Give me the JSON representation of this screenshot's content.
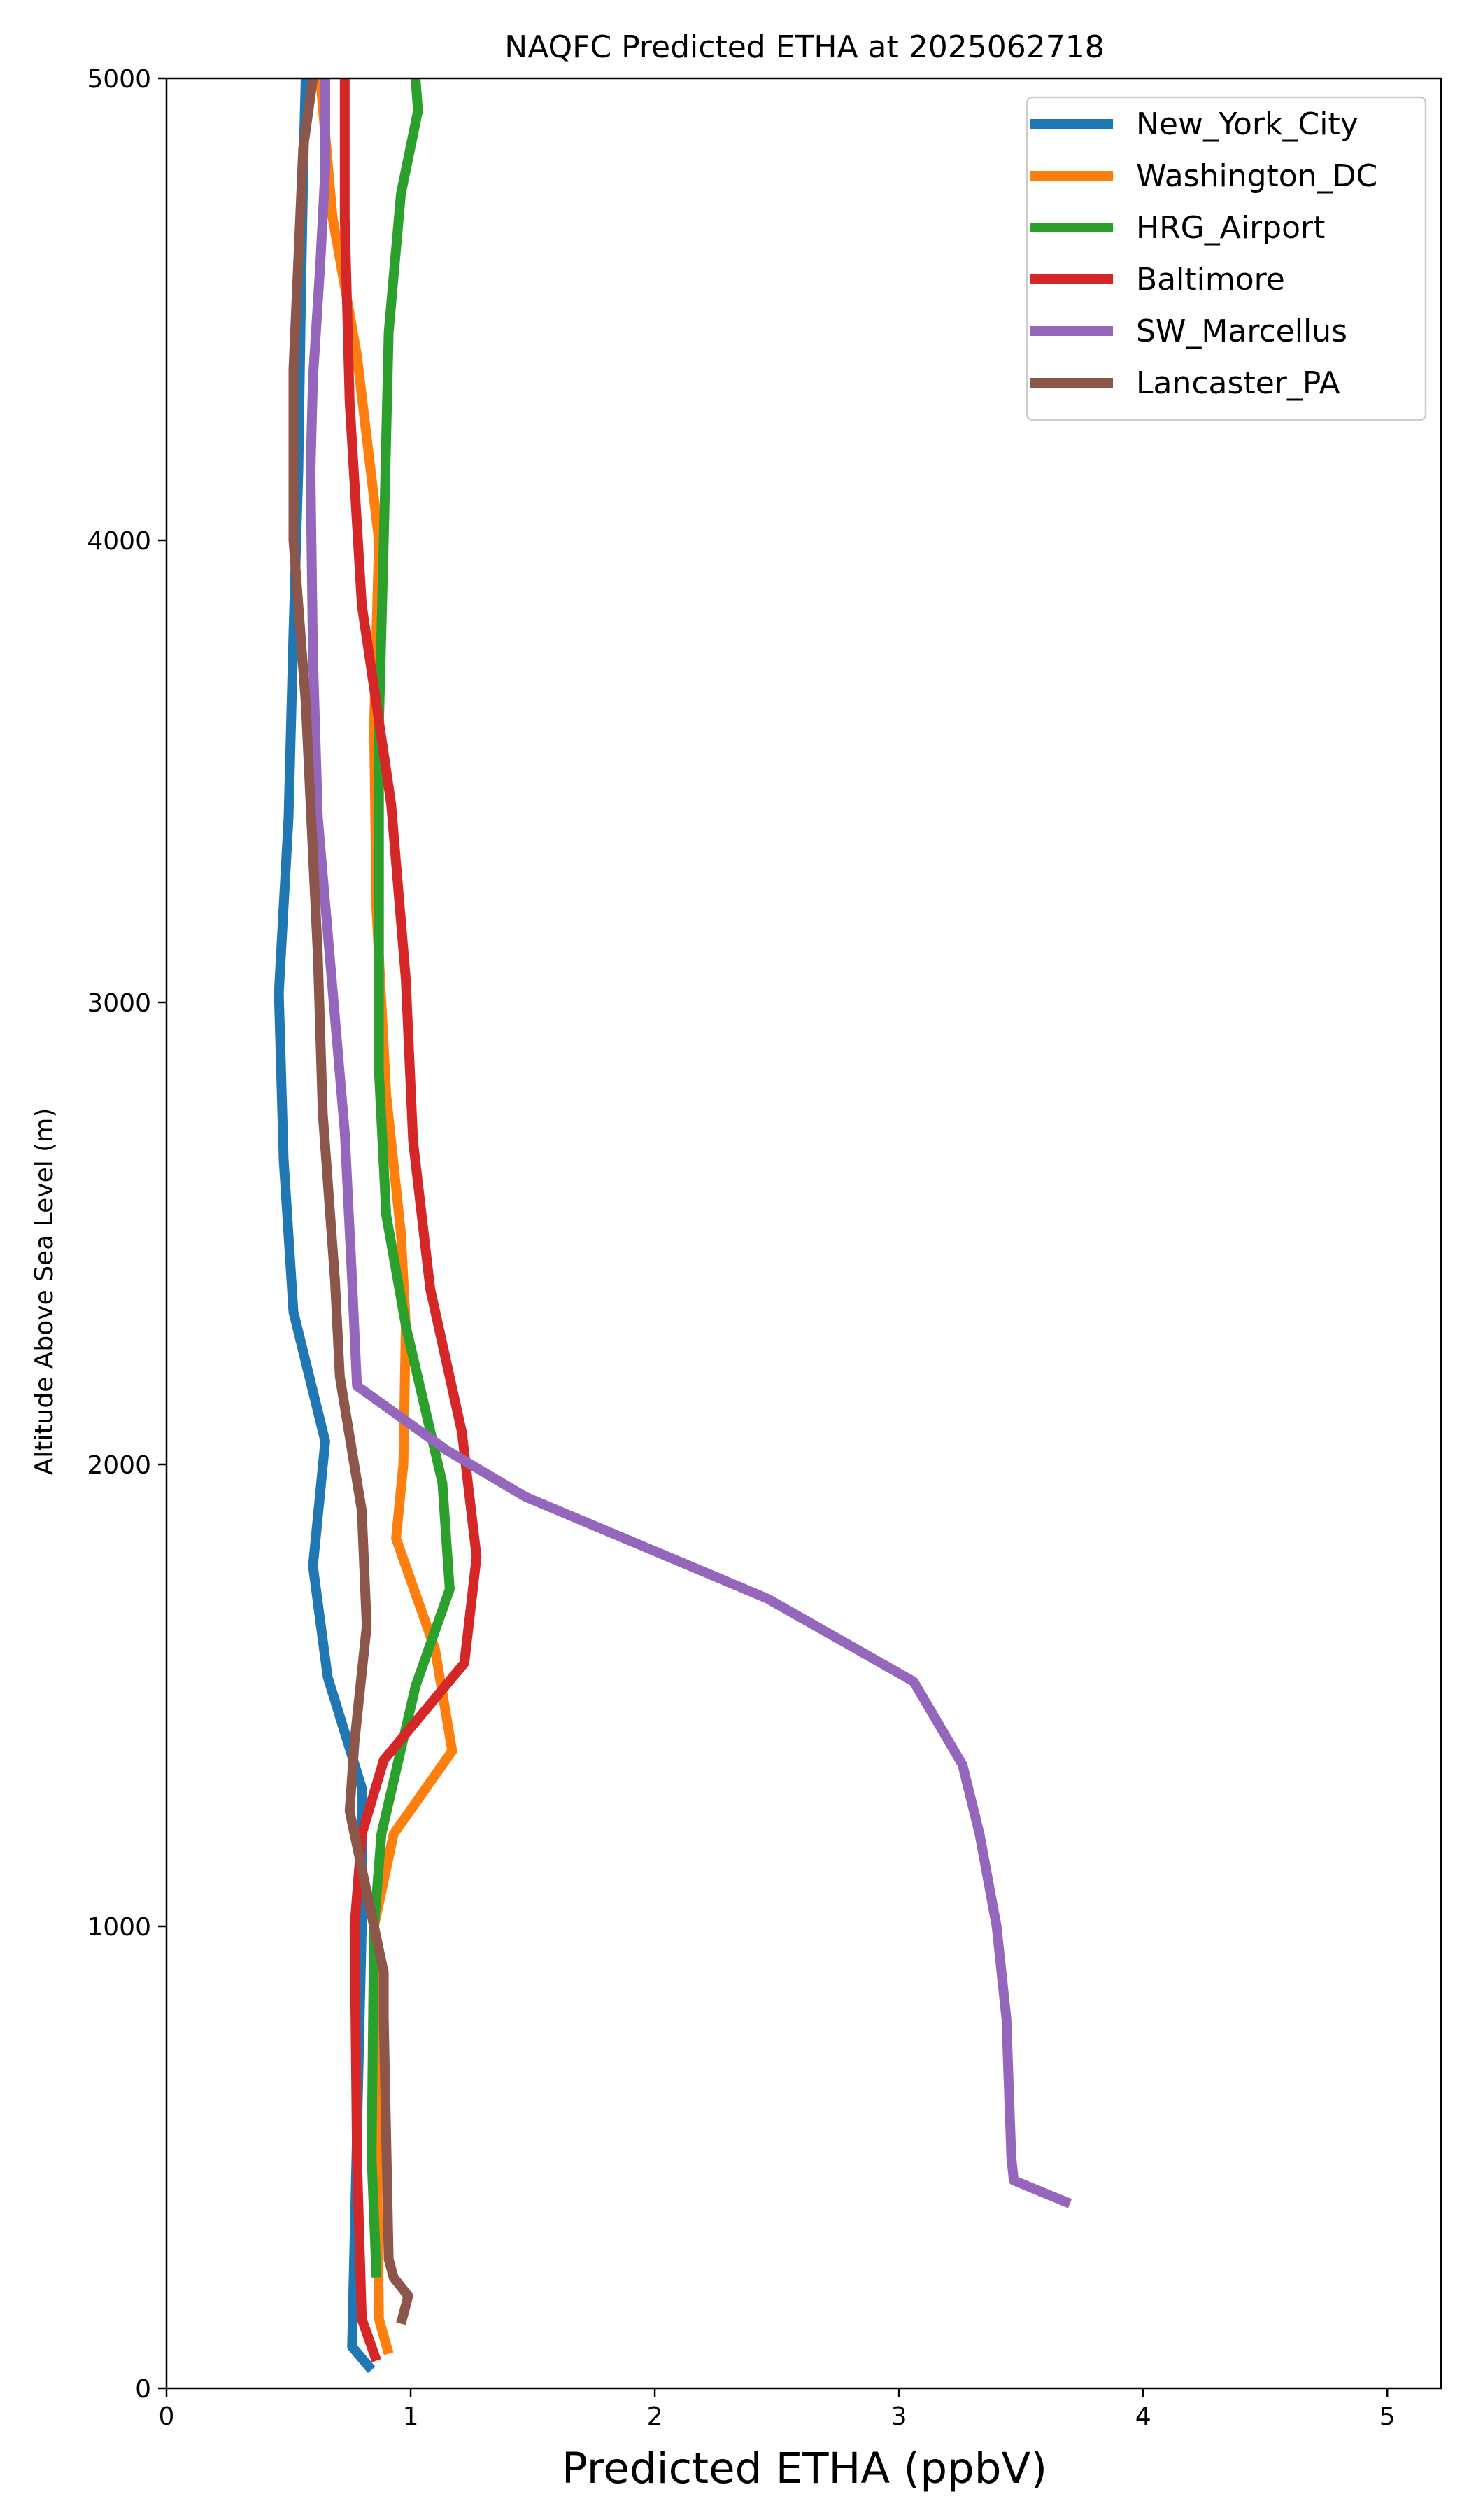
{
  "chart_data": {
    "type": "line",
    "title": "NAQFC Predicted ETHA at 2025062718",
    "xlabel": "Predicted ETHA (ppbV)",
    "ylabel": "Altitude Above Sea Level (m)",
    "xlim": [
      0,
      5.22
    ],
    "ylim": [
      0,
      5000
    ],
    "xticks": [
      0,
      1,
      2,
      3,
      4,
      5
    ],
    "yticks": [
      0,
      1000,
      2000,
      3000,
      4000,
      5000
    ],
    "x_tick_labels": [
      "0",
      "1",
      "2",
      "3",
      "4",
      "5"
    ],
    "y_tick_labels": [
      "0",
      "1000",
      "2000",
      "3000",
      "4000",
      "5000"
    ],
    "grid": false,
    "legend_position": "top-right",
    "series": [
      {
        "name": "New_York_City",
        "color": "#1f77b4",
        "points": [
          [
            0.84,
            40
          ],
          [
            0.76,
            90
          ],
          [
            0.8,
            1000
          ],
          [
            0.8,
            1300
          ],
          [
            0.66,
            1540
          ],
          [
            0.6,
            1780
          ],
          [
            0.65,
            2050
          ],
          [
            0.52,
            2330
          ],
          [
            0.48,
            2660
          ],
          [
            0.46,
            3020
          ],
          [
            0.5,
            3400
          ],
          [
            0.52,
            3800
          ],
          [
            0.54,
            4150
          ],
          [
            0.55,
            4500
          ],
          [
            0.56,
            4800
          ],
          [
            0.57,
            5000
          ]
        ]
      },
      {
        "name": "Washington_DC",
        "color": "#ff7f0e",
        "points": [
          [
            0.91,
            75
          ],
          [
            0.87,
            150
          ],
          [
            0.86,
            600
          ],
          [
            0.85,
            1000
          ],
          [
            0.93,
            1200
          ],
          [
            1.17,
            1380
          ],
          [
            1.1,
            1600
          ],
          [
            0.94,
            1840
          ],
          [
            0.97,
            2000
          ],
          [
            0.98,
            2300
          ],
          [
            0.96,
            2500
          ],
          [
            0.9,
            2800
          ],
          [
            0.86,
            3200
          ],
          [
            0.85,
            3600
          ],
          [
            0.87,
            4000
          ],
          [
            0.78,
            4400
          ],
          [
            0.68,
            4700
          ],
          [
            0.63,
            5000
          ]
        ]
      },
      {
        "name": "HRG_Airport",
        "color": "#2ca02c",
        "points": [
          [
            0.86,
            240
          ],
          [
            0.84,
            500
          ],
          [
            0.85,
            1000
          ],
          [
            0.88,
            1200
          ],
          [
            1.02,
            1520
          ],
          [
            1.16,
            1730
          ],
          [
            1.13,
            1960
          ],
          [
            0.98,
            2300
          ],
          [
            0.9,
            2540
          ],
          [
            0.87,
            2850
          ],
          [
            0.87,
            3250
          ],
          [
            0.87,
            3600
          ],
          [
            0.89,
            4000
          ],
          [
            0.91,
            4450
          ],
          [
            0.96,
            4750
          ],
          [
            1.03,
            4930
          ],
          [
            1.02,
            5000
          ]
        ]
      },
      {
        "name": "Baltimore",
        "color": "#d62728",
        "points": [
          [
            0.86,
            60
          ],
          [
            0.8,
            150
          ],
          [
            0.78,
            500
          ],
          [
            0.77,
            1000
          ],
          [
            0.8,
            1200
          ],
          [
            0.89,
            1360
          ],
          [
            1.22,
            1570
          ],
          [
            1.27,
            1800
          ],
          [
            1.21,
            2070
          ],
          [
            1.08,
            2380
          ],
          [
            1.01,
            2700
          ],
          [
            0.98,
            3050
          ],
          [
            0.92,
            3430
          ],
          [
            0.8,
            3860
          ],
          [
            0.75,
            4300
          ],
          [
            0.73,
            4700
          ],
          [
            0.73,
            5000
          ]
        ]
      },
      {
        "name": "SW_Marcellus",
        "color": "#9467bd",
        "points": [
          [
            3.7,
            400
          ],
          [
            3.47,
            450
          ],
          [
            3.46,
            500
          ],
          [
            3.44,
            800
          ],
          [
            3.4,
            1000
          ],
          [
            3.33,
            1200
          ],
          [
            3.26,
            1350
          ],
          [
            3.06,
            1530
          ],
          [
            2.46,
            1710
          ],
          [
            1.47,
            1930
          ],
          [
            1.15,
            2030
          ],
          [
            0.78,
            2170
          ],
          [
            0.76,
            2400
          ],
          [
            0.73,
            2720
          ],
          [
            0.62,
            3400
          ],
          [
            0.6,
            3750
          ],
          [
            0.59,
            4150
          ],
          [
            0.6,
            4350
          ],
          [
            0.63,
            4600
          ],
          [
            0.65,
            4800
          ],
          [
            0.65,
            5000
          ]
        ]
      },
      {
        "name": "Lancaster_PA",
        "color": "#8c564b",
        "points": [
          [
            0.96,
            140
          ],
          [
            0.99,
            200
          ],
          [
            0.93,
            240
          ],
          [
            0.91,
            280
          ],
          [
            0.89,
            800
          ],
          [
            0.89,
            900
          ],
          [
            0.81,
            1100
          ],
          [
            0.75,
            1250
          ],
          [
            0.77,
            1400
          ],
          [
            0.82,
            1650
          ],
          [
            0.8,
            1900
          ],
          [
            0.71,
            2190
          ],
          [
            0.69,
            2400
          ],
          [
            0.64,
            2760
          ],
          [
            0.62,
            3100
          ],
          [
            0.57,
            3650
          ],
          [
            0.52,
            4000
          ],
          [
            0.52,
            4370
          ],
          [
            0.56,
            4850
          ],
          [
            0.6,
            5000
          ]
        ]
      }
    ]
  }
}
